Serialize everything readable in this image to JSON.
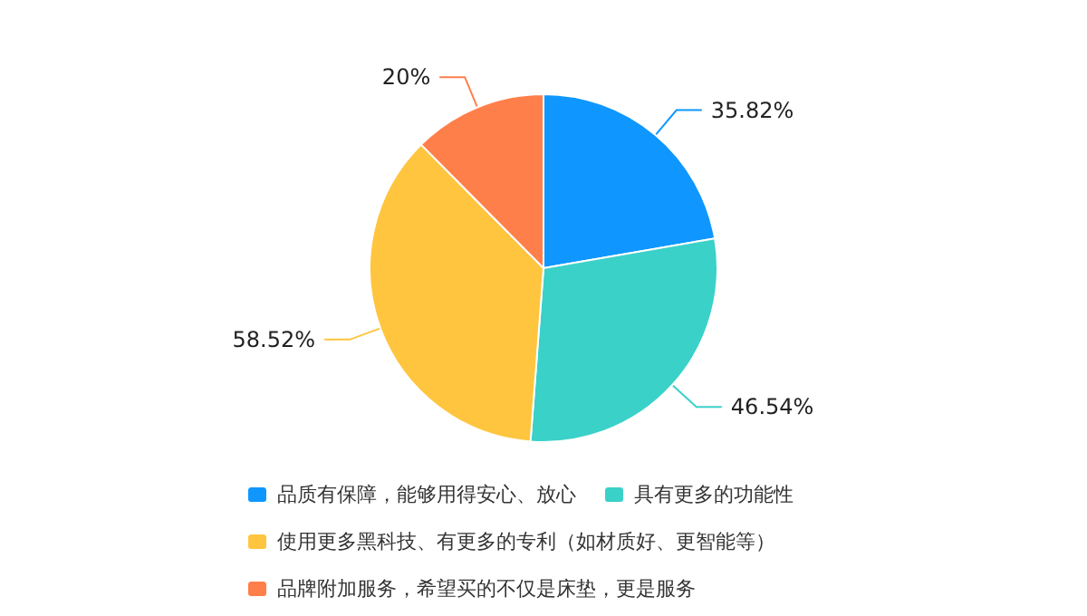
{
  "chart_data": {
    "type": "pie",
    "categories": [
      "品质有保障，能够用得安心、放心",
      "具有更多的功能性",
      "使用更多黑科技、有更多的专利（如材质好、更智能等）",
      "品牌附加服务，希望买的不仅是床垫，更是服务"
    ],
    "values": [
      35.82,
      46.54,
      58.52,
      20
    ],
    "value_labels": [
      "35.82%",
      "46.54%",
      "58.52%",
      "20%"
    ],
    "colors": [
      "#0f97ff",
      "#3ad1c9",
      "#ffc53f",
      "#ff7f4b"
    ],
    "legend": "bottom"
  }
}
